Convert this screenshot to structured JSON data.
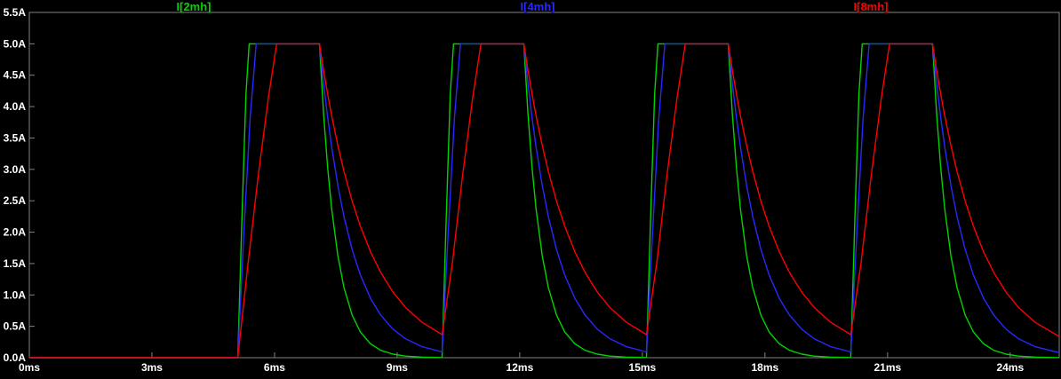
{
  "chart_data": {
    "type": "line",
    "title": "",
    "grid": false,
    "legend_position": "top",
    "background_color": "#000000",
    "axis_line_color": "#828282",
    "axis_text_color": "#ffffff",
    "xlim_ms": [
      0,
      25.2
    ],
    "ylim_A": [
      0,
      5.5
    ],
    "x_ticks": [
      {
        "t": 0,
        "label": "0ms"
      },
      {
        "t": 3,
        "label": "3ms"
      },
      {
        "t": 6,
        "label": "6ms"
      },
      {
        "t": 9,
        "label": "9ms"
      },
      {
        "t": 12,
        "label": "12ms"
      },
      {
        "t": 15,
        "label": "15ms"
      },
      {
        "t": 18,
        "label": "18ms"
      },
      {
        "t": 21,
        "label": "21ms"
      },
      {
        "t": 24,
        "label": "24ms"
      }
    ],
    "y_ticks": [
      {
        "v": 0.0,
        "label": "0.0A"
      },
      {
        "v": 0.5,
        "label": "0.5A"
      },
      {
        "v": 1.0,
        "label": "1.0A"
      },
      {
        "v": 1.5,
        "label": "1.5A"
      },
      {
        "v": 2.0,
        "label": "2.0A"
      },
      {
        "v": 2.5,
        "label": "2.5A"
      },
      {
        "v": 3.0,
        "label": "3.0A"
      },
      {
        "v": 3.5,
        "label": "3.5A"
      },
      {
        "v": 4.0,
        "label": "4.0A"
      },
      {
        "v": 4.5,
        "label": "4.5A"
      },
      {
        "v": 5.0,
        "label": "5.0A"
      },
      {
        "v": 5.5,
        "label": "5.5A"
      }
    ],
    "series": [
      {
        "name": "I[2mh]",
        "color": "#00d400",
        "points": [
          [
            0,
            0
          ],
          [
            5.1,
            0
          ],
          [
            5.2,
            2.2
          ],
          [
            5.3,
            4.2
          ],
          [
            5.38,
            5
          ],
          [
            7.1,
            5
          ],
          [
            7.2,
            3.894
          ],
          [
            7.3,
            3.033
          ],
          [
            7.4,
            2.362
          ],
          [
            7.55,
            1.624
          ],
          [
            7.7,
            1.116
          ],
          [
            7.9,
            0.677
          ],
          [
            8.1,
            0.41
          ],
          [
            8.35,
            0.22
          ],
          [
            8.6,
            0.118
          ],
          [
            8.9,
            0.056
          ],
          [
            9.2,
            0.026
          ],
          [
            9.6,
            0.01
          ],
          [
            10.1,
            0.003
          ],
          [
            10.2,
            2.2
          ],
          [
            10.3,
            4.2
          ],
          [
            10.38,
            5
          ],
          [
            12.1,
            5
          ],
          [
            12.2,
            3.894
          ],
          [
            12.3,
            3.033
          ],
          [
            12.4,
            2.362
          ],
          [
            12.55,
            1.624
          ],
          [
            12.7,
            1.116
          ],
          [
            12.9,
            0.677
          ],
          [
            13.1,
            0.41
          ],
          [
            13.35,
            0.22
          ],
          [
            13.6,
            0.118
          ],
          [
            13.9,
            0.056
          ],
          [
            14.2,
            0.026
          ],
          [
            14.6,
            0.01
          ],
          [
            15.1,
            0.003
          ],
          [
            15.2,
            2.2
          ],
          [
            15.3,
            4.2
          ],
          [
            15.38,
            5
          ],
          [
            17.1,
            5
          ],
          [
            17.2,
            3.894
          ],
          [
            17.3,
            3.033
          ],
          [
            17.4,
            2.362
          ],
          [
            17.55,
            1.624
          ],
          [
            17.7,
            1.116
          ],
          [
            17.9,
            0.677
          ],
          [
            18.1,
            0.41
          ],
          [
            18.35,
            0.22
          ],
          [
            18.6,
            0.118
          ],
          [
            18.9,
            0.056
          ],
          [
            19.2,
            0.026
          ],
          [
            19.6,
            0.01
          ],
          [
            20.1,
            0.003
          ],
          [
            20.2,
            2.2
          ],
          [
            20.3,
            4.2
          ],
          [
            20.38,
            5
          ],
          [
            22.1,
            5
          ],
          [
            22.2,
            3.894
          ],
          [
            22.3,
            3.033
          ],
          [
            22.4,
            2.362
          ],
          [
            22.55,
            1.624
          ],
          [
            22.7,
            1.116
          ],
          [
            22.9,
            0.677
          ],
          [
            23.1,
            0.41
          ],
          [
            23.35,
            0.22
          ],
          [
            23.6,
            0.118
          ],
          [
            23.9,
            0.056
          ],
          [
            24.2,
            0.026
          ],
          [
            24.6,
            0.01
          ],
          [
            25.2,
            0.002
          ]
        ]
      },
      {
        "name": "I[4mh]",
        "color": "#2828ff",
        "points": [
          [
            0,
            0
          ],
          [
            5.1,
            0
          ],
          [
            5.25,
            2.0
          ],
          [
            5.4,
            3.8
          ],
          [
            5.55,
            5
          ],
          [
            7.1,
            5
          ],
          [
            7.2,
            4.376
          ],
          [
            7.3,
            3.829
          ],
          [
            7.4,
            3.352
          ],
          [
            7.55,
            2.744
          ],
          [
            7.7,
            2.247
          ],
          [
            7.9,
            1.722
          ],
          [
            8.1,
            1.318
          ],
          [
            8.35,
            0.944
          ],
          [
            8.6,
            0.677
          ],
          [
            8.9,
            0.454
          ],
          [
            9.2,
            0.304
          ],
          [
            9.6,
            0.178
          ],
          [
            10.1,
            0.092
          ],
          [
            10.25,
            2.0
          ],
          [
            10.4,
            3.8
          ],
          [
            10.55,
            5
          ],
          [
            12.1,
            5
          ],
          [
            12.2,
            4.376
          ],
          [
            12.3,
            3.829
          ],
          [
            12.4,
            3.352
          ],
          [
            12.55,
            2.744
          ],
          [
            12.7,
            2.247
          ],
          [
            12.9,
            1.722
          ],
          [
            13.1,
            1.318
          ],
          [
            13.35,
            0.944
          ],
          [
            13.6,
            0.677
          ],
          [
            13.9,
            0.454
          ],
          [
            14.2,
            0.304
          ],
          [
            14.6,
            0.178
          ],
          [
            15.1,
            0.092
          ],
          [
            15.25,
            2.0
          ],
          [
            15.4,
            3.8
          ],
          [
            15.55,
            5
          ],
          [
            17.1,
            5
          ],
          [
            17.2,
            4.376
          ],
          [
            17.3,
            3.829
          ],
          [
            17.4,
            3.352
          ],
          [
            17.55,
            2.744
          ],
          [
            17.7,
            2.247
          ],
          [
            17.9,
            1.722
          ],
          [
            18.1,
            1.318
          ],
          [
            18.35,
            0.944
          ],
          [
            18.6,
            0.677
          ],
          [
            18.9,
            0.454
          ],
          [
            19.2,
            0.304
          ],
          [
            19.6,
            0.178
          ],
          [
            20.1,
            0.092
          ],
          [
            20.25,
            2.0
          ],
          [
            20.4,
            3.8
          ],
          [
            20.55,
            5
          ],
          [
            22.1,
            5
          ],
          [
            22.2,
            4.376
          ],
          [
            22.3,
            3.829
          ],
          [
            22.4,
            3.352
          ],
          [
            22.55,
            2.744
          ],
          [
            22.7,
            2.247
          ],
          [
            22.9,
            1.722
          ],
          [
            23.1,
            1.318
          ],
          [
            23.35,
            0.944
          ],
          [
            23.6,
            0.677
          ],
          [
            23.9,
            0.454
          ],
          [
            24.2,
            0.304
          ],
          [
            24.6,
            0.178
          ],
          [
            25.2,
            0.08
          ]
        ]
      },
      {
        "name": "I[8mh]",
        "color": "#ff0000",
        "points": [
          [
            0,
            0
          ],
          [
            5.1,
            0
          ],
          [
            5.35,
            1.5
          ],
          [
            5.6,
            2.9
          ],
          [
            5.85,
            4.15
          ],
          [
            6.05,
            5
          ],
          [
            7.1,
            5
          ],
          [
            7.2,
            4.584
          ],
          [
            7.3,
            4.202
          ],
          [
            7.4,
            3.852
          ],
          [
            7.55,
            3.381
          ],
          [
            7.7,
            2.967
          ],
          [
            7.9,
            2.494
          ],
          [
            8.1,
            2.096
          ],
          [
            8.35,
            1.686
          ],
          [
            8.6,
            1.356
          ],
          [
            8.9,
            1.044
          ],
          [
            9.2,
            0.805
          ],
          [
            9.6,
            0.568
          ],
          [
            10.1,
            0.368
          ],
          [
            10.35,
            1.5
          ],
          [
            10.6,
            2.9
          ],
          [
            10.85,
            4.15
          ],
          [
            11.05,
            5
          ],
          [
            12.1,
            5
          ],
          [
            12.2,
            4.584
          ],
          [
            12.3,
            4.202
          ],
          [
            12.4,
            3.852
          ],
          [
            12.55,
            3.381
          ],
          [
            12.7,
            2.967
          ],
          [
            12.9,
            2.494
          ],
          [
            13.1,
            2.096
          ],
          [
            13.35,
            1.686
          ],
          [
            13.6,
            1.356
          ],
          [
            13.9,
            1.044
          ],
          [
            14.2,
            0.805
          ],
          [
            14.6,
            0.568
          ],
          [
            15.1,
            0.368
          ],
          [
            15.35,
            1.5
          ],
          [
            15.6,
            2.9
          ],
          [
            15.85,
            4.15
          ],
          [
            16.05,
            5
          ],
          [
            17.1,
            5
          ],
          [
            17.2,
            4.584
          ],
          [
            17.3,
            4.202
          ],
          [
            17.4,
            3.852
          ],
          [
            17.55,
            3.381
          ],
          [
            17.7,
            2.967
          ],
          [
            17.9,
            2.494
          ],
          [
            18.1,
            2.096
          ],
          [
            18.35,
            1.686
          ],
          [
            18.6,
            1.356
          ],
          [
            18.9,
            1.044
          ],
          [
            19.2,
            0.805
          ],
          [
            19.6,
            0.568
          ],
          [
            20.1,
            0.368
          ],
          [
            20.35,
            1.5
          ],
          [
            20.6,
            2.9
          ],
          [
            20.85,
            4.15
          ],
          [
            21.05,
            5
          ],
          [
            22.1,
            5
          ],
          [
            22.2,
            4.584
          ],
          [
            22.3,
            4.202
          ],
          [
            22.4,
            3.852
          ],
          [
            22.55,
            3.381
          ],
          [
            22.7,
            2.967
          ],
          [
            22.9,
            2.494
          ],
          [
            23.1,
            2.096
          ],
          [
            23.35,
            1.686
          ],
          [
            23.6,
            1.356
          ],
          [
            23.9,
            1.044
          ],
          [
            24.2,
            0.805
          ],
          [
            24.6,
            0.568
          ],
          [
            25.2,
            0.337
          ]
        ]
      }
    ]
  }
}
